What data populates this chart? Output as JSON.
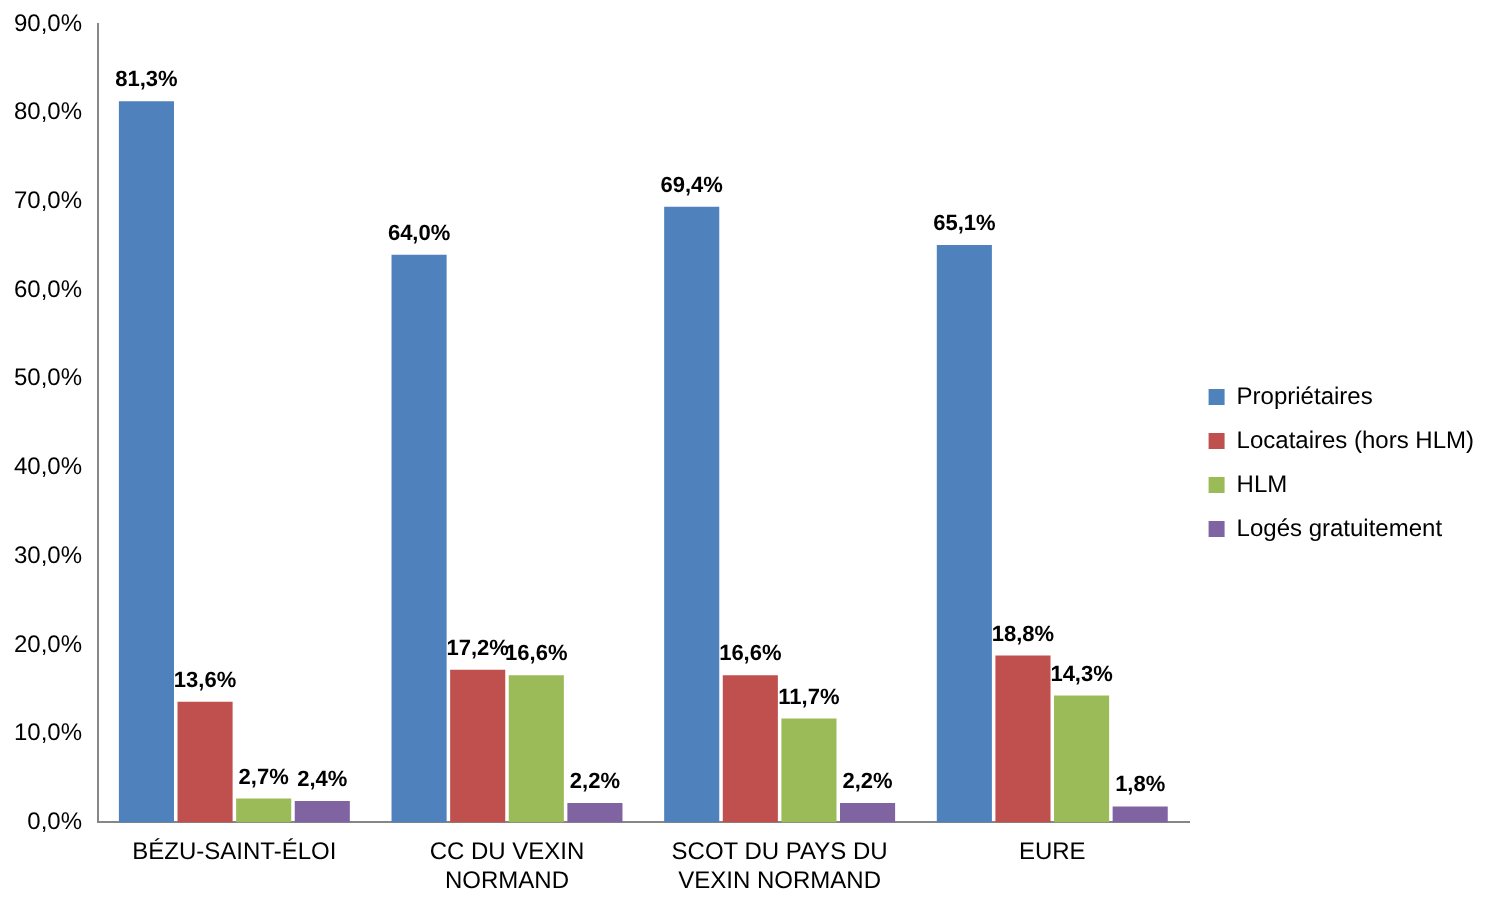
{
  "chart_data": {
    "type": "bar",
    "categories": [
      "BÉZU-SAINT-ÉLOI",
      "CC DU VEXIN NORMAND",
      "SCOT DU PAYS DU VEXIN NORMAND",
      "EURE"
    ],
    "series": [
      {
        "name": "Propriétaires",
        "color": "#4f81bd",
        "values": [
          81.3,
          64.0,
          69.4,
          65.1
        ],
        "value_labels": [
          "81,3%",
          "64,0%",
          "69,4%",
          "65,1%"
        ]
      },
      {
        "name": "Locataires (hors HLM)",
        "color": "#c0504d",
        "values": [
          13.6,
          17.2,
          16.6,
          18.8
        ],
        "value_labels": [
          "13,6%",
          "17,2%",
          "16,6%",
          "18,8%"
        ]
      },
      {
        "name": "HLM",
        "color": "#9bbb59",
        "values": [
          2.7,
          16.6,
          11.7,
          14.3
        ],
        "value_labels": [
          "2,7%",
          "16,6%",
          "11,7%",
          "14,3%"
        ]
      },
      {
        "name": "Logés gratuitement",
        "color": "#8064a2",
        "values": [
          2.4,
          2.2,
          2.2,
          1.8
        ],
        "value_labels": [
          "2,4%",
          "2,2%",
          "2,2%",
          "1,8%"
        ]
      }
    ],
    "ylim": [
      0,
      90
    ],
    "yticks": [
      {
        "value": 0,
        "label": "0,0%"
      },
      {
        "value": 10,
        "label": "10,0%"
      },
      {
        "value": 20,
        "label": "20,0%"
      },
      {
        "value": 30,
        "label": "30,0%"
      },
      {
        "value": 40,
        "label": "40,0%"
      },
      {
        "value": 50,
        "label": "50,0%"
      },
      {
        "value": 60,
        "label": "60,0%"
      },
      {
        "value": 70,
        "label": "70,0%"
      },
      {
        "value": 80,
        "label": "80,0%"
      },
      {
        "value": 90,
        "label": "90,0%"
      }
    ],
    "grid": false,
    "legend": "right"
  }
}
